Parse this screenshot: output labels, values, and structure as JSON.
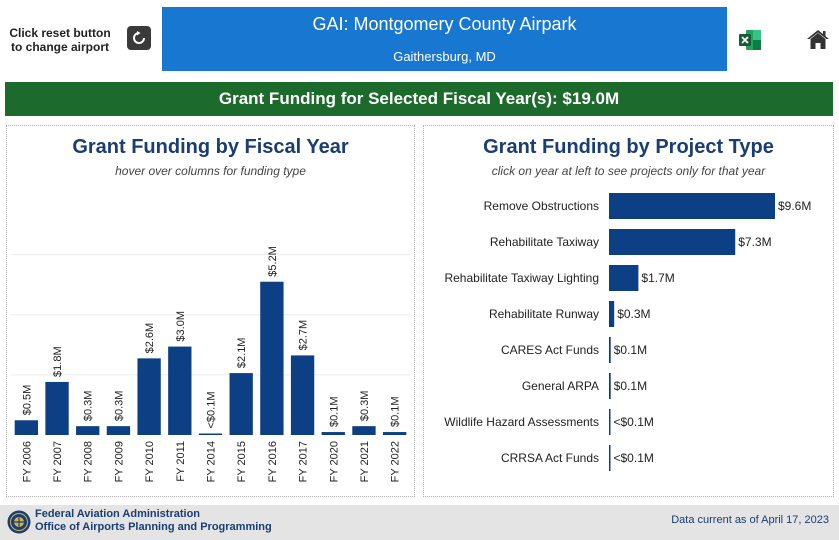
{
  "header": {
    "reset_hint": "Click reset button to change airport",
    "airport_title": "GAI: Montgomery County Airpark",
    "airport_location": "Gaithersburg, MD"
  },
  "summary": {
    "label": "Grant Funding for Selected Fiscal Year(s): $19.0M"
  },
  "left_panel": {
    "title": "Grant Funding by Fiscal Year",
    "subtitle": "hover over columns for funding type"
  },
  "right_panel": {
    "title": "Grant Funding by Project Type",
    "subtitle": "click on year at left to see projects only for that year"
  },
  "footer": {
    "agency": "Federal Aviation Administration",
    "office": "Office of Airports Planning and Programming",
    "as_of": "Data current as of April 17, 2023"
  },
  "colors": {
    "bar": "#0d3f85",
    "title_box": "#1777d1",
    "summary_bar": "#1d6b2c",
    "panel_title": "#1a3d73"
  },
  "icons": [
    "reset-icon",
    "excel-icon",
    "home-icon",
    "faa-seal-icon"
  ],
  "chart_data": [
    {
      "type": "bar",
      "categories": [
        "FY 2006",
        "FY 2007",
        "FY 2008",
        "FY 2009",
        "FY 2010",
        "FY 2011",
        "FY 2014",
        "FY 2015",
        "FY 2016",
        "FY 2017",
        "FY 2020",
        "FY 2021",
        "FY 2022"
      ],
      "values": [
        0.5,
        1.8,
        0.3,
        0.3,
        2.6,
        3.0,
        0.02,
        2.1,
        5.2,
        2.7,
        0.1,
        0.3,
        0.1
      ],
      "labels": [
        "$0.5M",
        "$1.8M",
        "$0.3M",
        "$0.3M",
        "$2.6M",
        "$3.0M",
        "<$0.1M",
        "$2.1M",
        "$5.2M",
        "$2.7M",
        "$0.1M",
        "$0.3M",
        "$0.1M"
      ],
      "units": "$M",
      "ylim": [
        0,
        6
      ]
    },
    {
      "type": "bar",
      "orientation": "horizontal",
      "categories": [
        "Remove Obstructions",
        "Rehabilitate Taxiway",
        "Rehabilitate Taxiway Lighting",
        "Rehabilitate Runway",
        "CARES Act Funds",
        "General ARPA",
        "Wildlife Hazard Assessments",
        "CRRSA Act Funds"
      ],
      "values": [
        9.6,
        7.3,
        1.7,
        0.3,
        0.1,
        0.1,
        0.05,
        0.03
      ],
      "labels": [
        "$9.6M",
        "$7.3M",
        "$1.7M",
        "$0.3M",
        "$0.1M",
        "$0.1M",
        "<$0.1M",
        "<$0.1M"
      ],
      "units": "$M",
      "xlim": [
        0,
        9.6
      ]
    }
  ]
}
